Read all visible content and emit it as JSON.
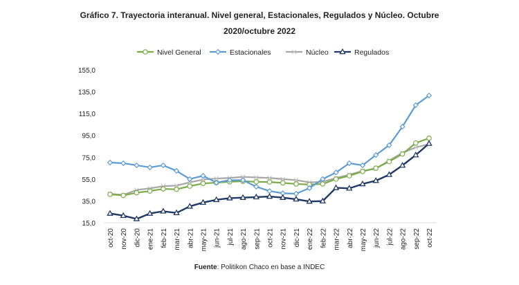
{
  "chart_data": {
    "type": "line",
    "title_line1": "Gráfico 7. Trayectoria interanual. Nivel general, Estacionales, Regulados y Núcleo. Octubre",
    "title_line2": "2020/octubre 2022",
    "source_label": "Fuente",
    "source_text": ": Politikon Chaco en base a INDEC",
    "legend_position": "top",
    "grid": false,
    "ylim": [
      15,
      155
    ],
    "yticks": [
      "15,0",
      "35,0",
      "55,0",
      "75,0",
      "95,0",
      "115,0",
      "135,0",
      "155,0"
    ],
    "ytick_values": [
      15,
      35,
      55,
      75,
      95,
      115,
      135,
      155
    ],
    "categories": [
      "oct-20",
      "nov-20",
      "dic-20",
      "ene-21",
      "feb-21",
      "mar-21",
      "abr-21",
      "may-21",
      "jun-21",
      "jul-21",
      "ago-21",
      "sep-21",
      "oct-21",
      "nov-21",
      "dic-21",
      "ene-22",
      "feb-22",
      "mar-22",
      "abr-22",
      "may-22",
      "jun-22",
      "jul-22",
      "ago-22",
      "sep-22",
      "oct-22"
    ],
    "series": [
      {
        "name": "Nivel General",
        "color": "#7aab48",
        "marker": "circle",
        "values": [
          41,
          40,
          42.5,
          44,
          46,
          45.6,
          48.5,
          51,
          51.7,
          52.5,
          53,
          52.5,
          52.3,
          51.5,
          50.5,
          50,
          50.5,
          55,
          58,
          62,
          65,
          71,
          78,
          88,
          92.4
        ]
      },
      {
        "name": "Estacionales",
        "color": "#5b9bd5",
        "marker": "diamond",
        "values": [
          70.1,
          69.5,
          67.6,
          65.7,
          67.6,
          62.5,
          55,
          58,
          51.7,
          54,
          54,
          48,
          44,
          42,
          41.6,
          46.7,
          55,
          61,
          69.5,
          67.6,
          77,
          86,
          103,
          122.7,
          131.5
        ]
      },
      {
        "name": "Núcleo",
        "color": "#a6a6a6",
        "marker": "x",
        "values": [
          41.5,
          40.5,
          45,
          46.5,
          48.5,
          49,
          52,
          54.5,
          55.5,
          56,
          57,
          56.5,
          56,
          55,
          54,
          52,
          52.5,
          56,
          59,
          62.5,
          64.5,
          72,
          79,
          84,
          87
        ]
      },
      {
        "name": "Regulados",
        "color": "#1f3864",
        "marker": "triangle",
        "values": [
          23.5,
          21.5,
          18.5,
          23.5,
          25.5,
          24,
          30,
          33.5,
          36,
          37.5,
          38,
          38.5,
          39,
          38,
          36.5,
          34.5,
          34.8,
          47,
          46.5,
          50.5,
          53.5,
          59,
          67.5,
          77,
          87.5
        ]
      }
    ]
  }
}
